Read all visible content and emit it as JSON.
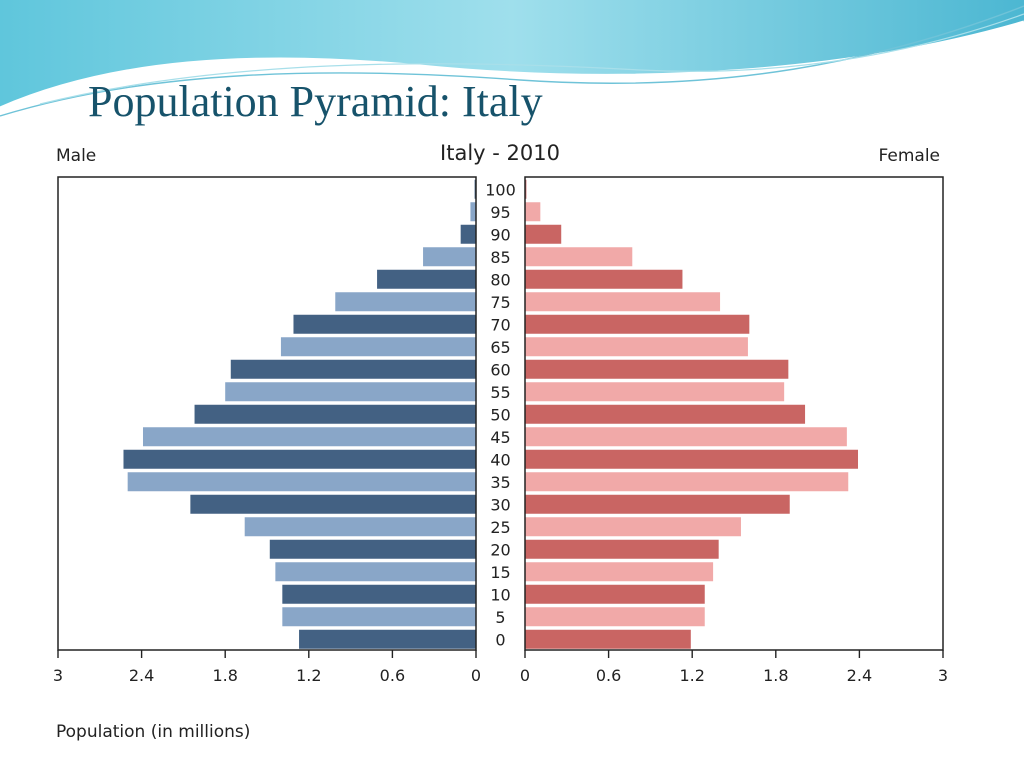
{
  "slide": {
    "title": "Population Pyramid: Italy"
  },
  "chart_data": {
    "type": "bar",
    "title": "Italy - 2010",
    "left_label": "Male",
    "right_label": "Female",
    "xlabel": "Population (in millions)",
    "xlim": [
      0,
      3
    ],
    "x_ticks": [
      "0",
      "0.6",
      "1.2",
      "1.8",
      "2.4",
      "3"
    ],
    "categories": [
      "100",
      "95",
      "90",
      "85",
      "80",
      "75",
      "70",
      "65",
      "60",
      "55",
      "50",
      "45",
      "40",
      "35",
      "30",
      "25",
      "20",
      "15",
      "10",
      "5",
      "0"
    ],
    "series": [
      {
        "name": "Male",
        "values": [
          0.01,
          0.04,
          0.11,
          0.38,
          0.71,
          1.01,
          1.31,
          1.4,
          1.76,
          1.8,
          2.02,
          2.39,
          2.53,
          2.5,
          2.05,
          1.66,
          1.48,
          1.44,
          1.39,
          1.39,
          1.27
        ]
      },
      {
        "name": "Female",
        "values": [
          0.01,
          0.11,
          0.26,
          0.77,
          1.13,
          1.4,
          1.61,
          1.6,
          1.89,
          1.86,
          2.01,
          2.31,
          2.39,
          2.32,
          1.9,
          1.55,
          1.39,
          1.35,
          1.29,
          1.29,
          1.19
        ]
      }
    ],
    "colors": {
      "male_dark": "#436183",
      "male_light": "#89a6c8",
      "female_dark": "#c96563",
      "female_light": "#f1a9a8"
    },
    "grid": false,
    "legend": "none"
  }
}
